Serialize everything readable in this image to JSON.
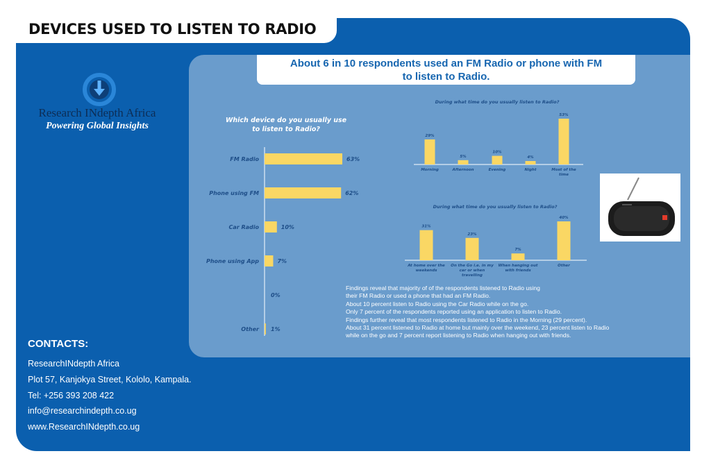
{
  "page": {
    "title": "DEVICES USED TO LISTEN TO RADIO"
  },
  "brand": {
    "name": "Research INdepth Africa",
    "tagline": "Powering Global Insights"
  },
  "headline": {
    "line1": "About 6 in 10 respondents used an FM Radio or phone with FM",
    "line2": "to listen to Radio."
  },
  "chart_data": [
    {
      "type": "bar",
      "orientation": "horizontal",
      "title_lines": [
        "Which device do you usually use",
        "to listen to Radio?"
      ],
      "categories": [
        "FM Radio",
        "Phone using FM",
        "Car Radio",
        "Phone using App",
        "",
        "Other"
      ],
      "values": [
        63,
        62,
        10,
        7,
        0,
        1
      ],
      "value_labels": [
        "63%",
        "62%",
        "10%",
        "7%",
        "0%",
        "1%"
      ],
      "color": "#fad764",
      "xlim": [
        0,
        63
      ]
    },
    {
      "type": "bar",
      "title": "During what time do you usually listen to Radio?",
      "categories": [
        [
          "Morning"
        ],
        [
          "Afternoon"
        ],
        [
          "Evening"
        ],
        [
          "Night"
        ],
        [
          "Most of the",
          "time"
        ]
      ],
      "values": [
        29,
        5,
        10,
        4,
        53
      ],
      "value_labels": [
        "29%",
        "5%",
        "10%",
        "4%",
        "53%"
      ],
      "color": "#fad764",
      "ylim": [
        0,
        53
      ]
    },
    {
      "type": "bar",
      "title": "During what time do you usually listen to Radio?",
      "categories": [
        [
          "At home over the",
          "weekends"
        ],
        [
          "On the Go i.e. in my",
          "car or when",
          "travelling"
        ],
        [
          "When hanging out",
          "with friends"
        ],
        [
          "Other"
        ]
      ],
      "values": [
        31,
        23,
        7,
        40
      ],
      "value_labels": [
        "31%",
        "23%",
        "7%",
        "40%"
      ],
      "color": "#fad764",
      "ylim": [
        0,
        40
      ]
    }
  ],
  "findings": [
    "Findings reveal that majority of of the respondents listened to Radio using",
    "  their FM Radio or used a phone that had an FM Radio.",
    "About 10 percent listen to Radio using the Car Radio while on the go.",
    "Only 7 percent of the respondents reported using an application to listen to Radio.",
    "Findings further reveal that most respondents listened to Radio in the Morning (29 percent).",
    "About 31 percent listened to Radio at home but mainly over the weekend, 23 percent listen to Radio",
    "while on the go and 7 percent report listening to Radio when hanging out with friends."
  ],
  "contacts": {
    "heading": "CONTACTS:",
    "org": "ResearchINdepth Africa",
    "address": "Plot 57, Kanjokya Street, Kololo, Kampala.",
    "tel": "Tel: +256  393 208 422",
    "email": "info@researchindepth.co.ug",
    "web": "www.ResearchINdepth.co.ug"
  },
  "colors": {
    "card": "#0b5fae",
    "panel": "#6a9ccc",
    "bar": "#fad764",
    "headline_text": "#1766b0"
  },
  "icons": {
    "logo": "refresh-download-icon",
    "product": "portable-radio-speaker"
  }
}
